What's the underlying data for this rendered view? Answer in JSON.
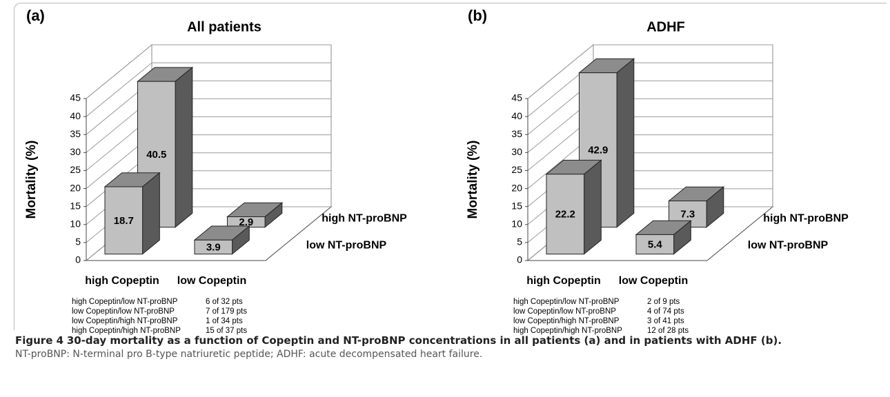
{
  "chart_data": [
    {
      "type": "bar3d",
      "panel_label": "(a)",
      "title": "All patients",
      "y_label": "Mortality (%)",
      "categories": [
        "high Copeptin",
        "low Copeptin"
      ],
      "series": [
        {
          "name": "low NT-proBNP",
          "color": "#c0c0c0",
          "values": [
            18.7,
            3.9
          ]
        },
        {
          "name": "high NT-proBNP",
          "color": "#c0c0c0",
          "values": [
            40.5,
            2.9
          ]
        }
      ],
      "ylim": [
        0,
        45
      ],
      "yticks": [
        0,
        5,
        10,
        15,
        20,
        25,
        30,
        35,
        40,
        45
      ],
      "grid": true,
      "table": [
        [
          "high Copeptin/low NT-proBNP",
          "6 of 32 pts"
        ],
        [
          "low Copeptin/low NT-proBNP",
          "7 of 179 pts"
        ],
        [
          "low Copeptin/high NT-proBNP",
          "1 of 34 pts"
        ],
        [
          "high Copeptin/high NT-proBNP",
          "15 of 37 pts"
        ]
      ]
    },
    {
      "type": "bar3d",
      "panel_label": "(b)",
      "title": "ADHF",
      "y_label": "Mortality (%)",
      "categories": [
        "high Copeptin",
        "low Copeptin"
      ],
      "series": [
        {
          "name": "low NT-proBNP",
          "color": "#c0c0c0",
          "values": [
            22.2,
            5.4
          ]
        },
        {
          "name": "high NT-proBNP",
          "color": "#c0c0c0",
          "values": [
            42.9,
            7.3
          ]
        }
      ],
      "ylim": [
        0,
        45
      ],
      "yticks": [
        0,
        5,
        10,
        15,
        20,
        25,
        30,
        35,
        40,
        45
      ],
      "grid": true,
      "table": [
        [
          "high Copeptin/low NT-proBNP",
          "2 of 9 pts"
        ],
        [
          "low Copeptin/low NT-proBNP",
          "4 of 74 pts"
        ],
        [
          "low Copeptin/high NT-proBNP",
          "3 of 41 pts"
        ],
        [
          "high Copeptin/high NT-proBNP",
          "12 of 28 pts"
        ]
      ]
    }
  ],
  "caption": {
    "label": "Figure 4",
    "title": "30-day mortality as a function of Copeptin and NT-proBNP concentrations in all patients (a) and in patients with ADHF (b).",
    "text": "NT-proBNP: N-terminal pro B-type natriuretic peptide; ADHF: acute decompensated heart failure."
  }
}
